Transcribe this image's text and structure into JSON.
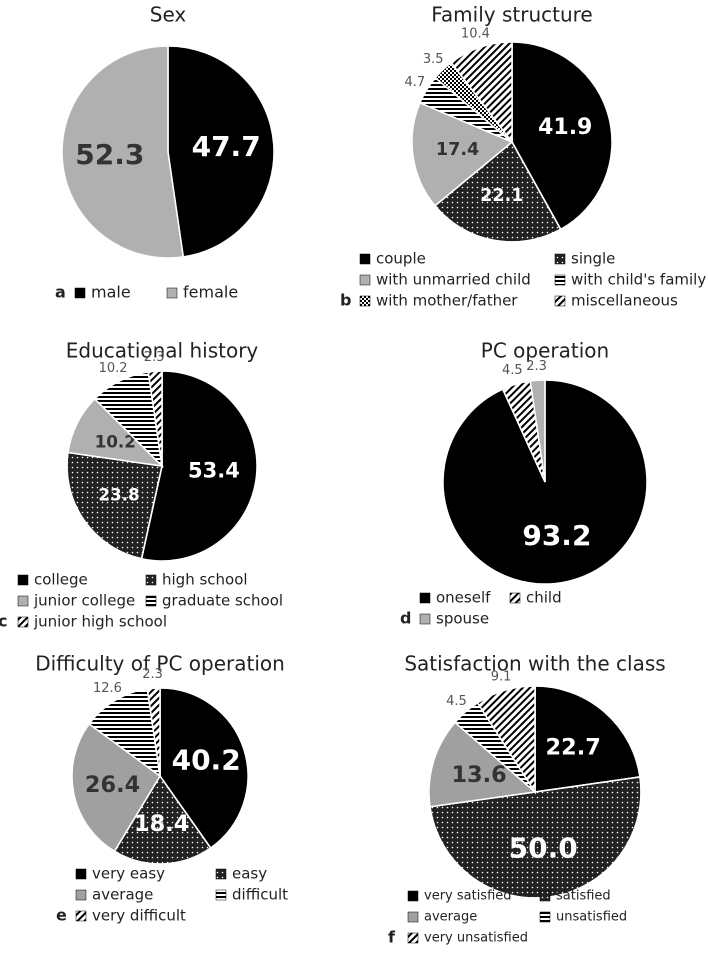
{
  "chart_data": [
    {
      "type": "pie",
      "panel": "a",
      "title": "Sex",
      "categories": [
        "male",
        "female"
      ],
      "values": [
        47.7,
        52.3
      ],
      "colors": [
        "#000000",
        "#b0b0b0"
      ],
      "patterns": [
        "solid",
        "solid"
      ]
    },
    {
      "type": "pie",
      "panel": "b",
      "title": "Family structure",
      "categories": [
        "couple",
        "single",
        "with unmarried child",
        "with child's family",
        "with mother/father",
        "miscellaneous"
      ],
      "values": [
        41.9,
        22.1,
        17.4,
        4.7,
        3.5,
        10.4
      ],
      "colors": [
        "#000000",
        "#222222",
        "#b0b0b0",
        "#ffffff",
        "#ffffff",
        "#ffffff"
      ],
      "patterns": [
        "solid",
        "dots",
        "solid",
        "hlines",
        "cross",
        "diag"
      ]
    },
    {
      "type": "pie",
      "panel": "c",
      "title": "Educational history",
      "categories": [
        "college",
        "high school",
        "junior college",
        "graduate school",
        "junior high school"
      ],
      "values": [
        53.4,
        23.8,
        10.2,
        10.2,
        2.3
      ],
      "colors": [
        "#000000",
        "#222222",
        "#b0b0b0",
        "#ffffff",
        "#ffffff"
      ],
      "patterns": [
        "solid",
        "dots",
        "solid",
        "hlines",
        "diag"
      ]
    },
    {
      "type": "pie",
      "panel": "d",
      "title": "PC operation",
      "categories": [
        "oneself",
        "child",
        "spouse"
      ],
      "values": [
        93.2,
        4.5,
        2.3
      ],
      "colors": [
        "#000000",
        "#ffffff",
        "#b0b0b0"
      ],
      "patterns": [
        "solid",
        "diag",
        "solid"
      ]
    },
    {
      "type": "pie",
      "panel": "e",
      "title": "Difficulty of PC operation",
      "categories": [
        "very easy",
        "easy",
        "average",
        "difficult",
        "very difficult"
      ],
      "values": [
        40.2,
        18.4,
        26.4,
        12.6,
        2.3
      ],
      "colors": [
        "#000000",
        "#222222",
        "#a0a0a0",
        "#ffffff",
        "#ffffff"
      ],
      "patterns": [
        "solid",
        "dots",
        "solid",
        "hlines",
        "diag"
      ]
    },
    {
      "type": "pie",
      "panel": "f",
      "title": "Satisfaction with the class",
      "categories": [
        "very satisfied",
        "satisfied",
        "average",
        "unsatisfied",
        "very unsatisfied"
      ],
      "values": [
        22.7,
        50.0,
        13.6,
        4.5,
        9.1
      ],
      "value_labels": [
        "22.7",
        "50.0",
        "13.6",
        "4.5",
        "9.1"
      ],
      "colors": [
        "#000000",
        "#222222",
        "#a0a0a0",
        "#ffffff",
        "#ffffff"
      ],
      "patterns": [
        "solid",
        "dots",
        "solid",
        "hlines",
        "diag"
      ]
    }
  ]
}
